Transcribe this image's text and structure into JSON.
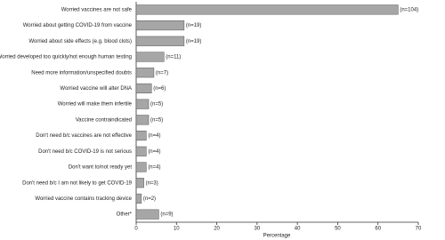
{
  "chart_data": {
    "type": "hbar",
    "categories": [
      "Worried vaccines are not safe",
      "Worried about getting COVID-19 from vaccine",
      "Worried about side effects (e.g. blood clots)",
      "Worried developed too quickly/not enough human testing",
      "Need more information/unspecified doubts",
      "Worried vaccine will alter DNA",
      "Worried will make them infertile",
      "Vaccine contraindicated",
      "Don't need b/c vaccines are not effective",
      "Don't need b/c COVID-19 is not serious",
      "Don't want to/not ready yet",
      "Don't need b/c I am not likely to get COVID-19",
      "Worried vaccine contains tracking device",
      "Other*"
    ],
    "values": [
      65,
      11.9,
      11.9,
      6.9,
      4.4,
      3.8,
      3.1,
      3.1,
      2.5,
      2.5,
      2.5,
      1.9,
      1.3,
      5.6
    ],
    "bar_labels": [
      "(n=104)",
      "(n=19)",
      "(n=19)",
      "(n=11)",
      "(n=7)",
      "(n=6)",
      "(n=5)",
      "(n=5)",
      "(n=4)",
      "(n=4)",
      "(n=4)",
      "(n=3)",
      "(n=2)",
      "(n=9)"
    ],
    "color": "#a6a6a6",
    "xlabel": "Percentage",
    "xlim": [
      0,
      70
    ],
    "xticks": [
      0,
      10,
      20,
      30,
      40,
      50,
      60,
      70
    ]
  }
}
